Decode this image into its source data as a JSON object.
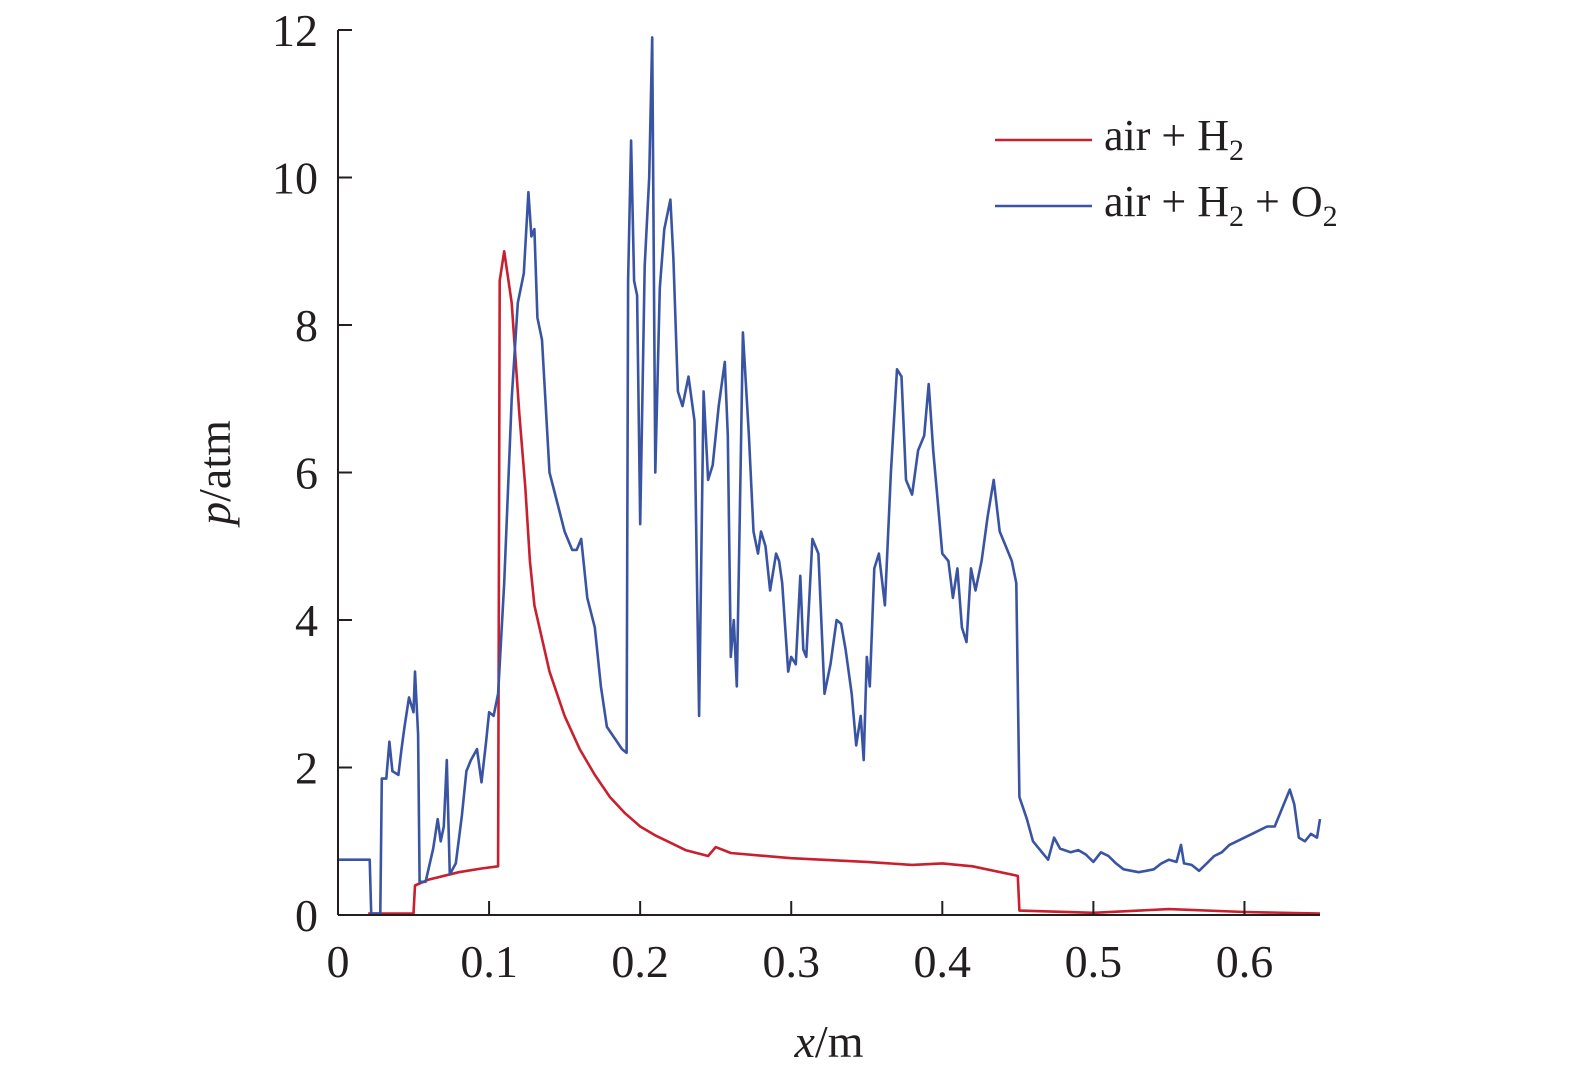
{
  "chart_data": {
    "type": "line",
    "xlabel": {
      "var": "x",
      "unit": "/m"
    },
    "ylabel": {
      "var": "p",
      "unit": "/atm"
    },
    "xlim": [
      0,
      0.65
    ],
    "ylim": [
      0,
      12
    ],
    "xticks": [
      {
        "value": 0,
        "label": "0"
      },
      {
        "value": 0.1,
        "label": "0.1"
      },
      {
        "value": 0.2,
        "label": "0.2"
      },
      {
        "value": 0.3,
        "label": "0.3"
      },
      {
        "value": 0.4,
        "label": "0.4"
      },
      {
        "value": 0.5,
        "label": "0.5"
      },
      {
        "value": 0.6,
        "label": "0.6"
      }
    ],
    "yticks": [
      {
        "value": 0,
        "label": "0"
      },
      {
        "value": 2,
        "label": "2"
      },
      {
        "value": 4,
        "label": "4"
      },
      {
        "value": 6,
        "label": "6"
      },
      {
        "value": 8,
        "label": "8"
      },
      {
        "value": 10,
        "label": "10"
      },
      {
        "value": 12,
        "label": "12"
      }
    ],
    "grid": false,
    "legend_position": "top-right",
    "series": [
      {
        "name": "air + H2",
        "legend": {
          "parts": [
            "air + H",
            "2"
          ]
        },
        "color": "#c8202f",
        "points": [
          [
            0.02,
            0.02
          ],
          [
            0.05,
            0.02
          ],
          [
            0.051,
            0.4
          ],
          [
            0.06,
            0.48
          ],
          [
            0.08,
            0.58
          ],
          [
            0.095,
            0.63
          ],
          [
            0.106,
            0.66
          ],
          [
            0.107,
            8.6
          ],
          [
            0.11,
            9.0
          ],
          [
            0.115,
            8.3
          ],
          [
            0.12,
            6.8
          ],
          [
            0.124,
            5.8
          ],
          [
            0.127,
            4.8
          ],
          [
            0.13,
            4.2
          ],
          [
            0.14,
            3.3
          ],
          [
            0.15,
            2.7
          ],
          [
            0.16,
            2.25
          ],
          [
            0.17,
            1.9
          ],
          [
            0.18,
            1.6
          ],
          [
            0.19,
            1.38
          ],
          [
            0.2,
            1.2
          ],
          [
            0.21,
            1.08
          ],
          [
            0.22,
            0.98
          ],
          [
            0.23,
            0.88
          ],
          [
            0.245,
            0.8
          ],
          [
            0.25,
            0.92
          ],
          [
            0.26,
            0.84
          ],
          [
            0.3,
            0.77
          ],
          [
            0.35,
            0.72
          ],
          [
            0.38,
            0.68
          ],
          [
            0.4,
            0.7
          ],
          [
            0.42,
            0.66
          ],
          [
            0.45,
            0.53
          ],
          [
            0.451,
            0.06
          ],
          [
            0.5,
            0.03
          ],
          [
            0.55,
            0.08
          ],
          [
            0.6,
            0.04
          ],
          [
            0.65,
            0.02
          ]
        ]
      },
      {
        "name": "air + H2 + O2",
        "legend": {
          "parts": [
            "air + H",
            "2",
            " + O",
            "2"
          ]
        },
        "color": "#3a54a4",
        "points": [
          [
            0.0,
            0.75
          ],
          [
            0.021,
            0.75
          ],
          [
            0.022,
            0.02
          ],
          [
            0.028,
            0.02
          ],
          [
            0.029,
            1.85
          ],
          [
            0.032,
            1.85
          ],
          [
            0.034,
            2.35
          ],
          [
            0.036,
            1.95
          ],
          [
            0.04,
            1.9
          ],
          [
            0.042,
            2.25
          ],
          [
            0.044,
            2.55
          ],
          [
            0.047,
            2.95
          ],
          [
            0.05,
            2.75
          ],
          [
            0.051,
            3.3
          ],
          [
            0.053,
            2.45
          ],
          [
            0.054,
            0.45
          ],
          [
            0.058,
            0.45
          ],
          [
            0.063,
            0.9
          ],
          [
            0.066,
            1.3
          ],
          [
            0.068,
            1.0
          ],
          [
            0.07,
            1.2
          ],
          [
            0.072,
            2.1
          ],
          [
            0.074,
            0.55
          ],
          [
            0.078,
            0.7
          ],
          [
            0.082,
            1.35
          ],
          [
            0.085,
            1.95
          ],
          [
            0.088,
            2.1
          ],
          [
            0.092,
            2.25
          ],
          [
            0.095,
            1.8
          ],
          [
            0.098,
            2.35
          ],
          [
            0.1,
            2.75
          ],
          [
            0.103,
            2.7
          ],
          [
            0.106,
            3.0
          ],
          [
            0.11,
            4.5
          ],
          [
            0.115,
            7.0
          ],
          [
            0.119,
            8.3
          ],
          [
            0.123,
            8.7
          ],
          [
            0.126,
            9.8
          ],
          [
            0.128,
            9.2
          ],
          [
            0.13,
            9.3
          ],
          [
            0.132,
            8.1
          ],
          [
            0.135,
            7.8
          ],
          [
            0.14,
            6.0
          ],
          [
            0.145,
            5.6
          ],
          [
            0.15,
            5.2
          ],
          [
            0.155,
            4.95
          ],
          [
            0.158,
            4.95
          ],
          [
            0.161,
            5.1
          ],
          [
            0.165,
            4.3
          ],
          [
            0.17,
            3.9
          ],
          [
            0.174,
            3.1
          ],
          [
            0.178,
            2.55
          ],
          [
            0.183,
            2.4
          ],
          [
            0.188,
            2.25
          ],
          [
            0.191,
            2.2
          ],
          [
            0.192,
            8.6
          ],
          [
            0.194,
            10.5
          ],
          [
            0.196,
            8.6
          ],
          [
            0.198,
            8.4
          ],
          [
            0.2,
            5.3
          ],
          [
            0.203,
            8.8
          ],
          [
            0.206,
            10.0
          ],
          [
            0.208,
            11.9
          ],
          [
            0.21,
            6.0
          ],
          [
            0.213,
            8.5
          ],
          [
            0.216,
            9.3
          ],
          [
            0.22,
            9.7
          ],
          [
            0.222,
            8.9
          ],
          [
            0.225,
            7.1
          ],
          [
            0.228,
            6.9
          ],
          [
            0.232,
            7.3
          ],
          [
            0.236,
            6.7
          ],
          [
            0.239,
            2.7
          ],
          [
            0.242,
            7.1
          ],
          [
            0.245,
            5.9
          ],
          [
            0.248,
            6.1
          ],
          [
            0.252,
            6.9
          ],
          [
            0.256,
            7.5
          ],
          [
            0.258,
            6.5
          ],
          [
            0.26,
            3.5
          ],
          [
            0.262,
            4.0
          ],
          [
            0.264,
            3.1
          ],
          [
            0.266,
            5.5
          ],
          [
            0.268,
            7.9
          ],
          [
            0.272,
            6.5
          ],
          [
            0.275,
            5.2
          ],
          [
            0.278,
            4.9
          ],
          [
            0.28,
            5.2
          ],
          [
            0.283,
            5.0
          ],
          [
            0.286,
            4.4
          ],
          [
            0.29,
            4.9
          ],
          [
            0.292,
            4.8
          ],
          [
            0.294,
            4.5
          ],
          [
            0.298,
            3.3
          ],
          [
            0.3,
            3.5
          ],
          [
            0.303,
            3.4
          ],
          [
            0.306,
            4.6
          ],
          [
            0.308,
            3.6
          ],
          [
            0.31,
            3.5
          ],
          [
            0.314,
            5.1
          ],
          [
            0.318,
            4.9
          ],
          [
            0.322,
            3.0
          ],
          [
            0.326,
            3.4
          ],
          [
            0.33,
            4.0
          ],
          [
            0.333,
            3.95
          ],
          [
            0.336,
            3.6
          ],
          [
            0.34,
            3.0
          ],
          [
            0.343,
            2.3
          ],
          [
            0.346,
            2.7
          ],
          [
            0.348,
            2.1
          ],
          [
            0.35,
            3.5
          ],
          [
            0.352,
            3.1
          ],
          [
            0.355,
            4.7
          ],
          [
            0.358,
            4.9
          ],
          [
            0.362,
            4.2
          ],
          [
            0.366,
            6.0
          ],
          [
            0.37,
            7.4
          ],
          [
            0.373,
            7.3
          ],
          [
            0.376,
            5.9
          ],
          [
            0.38,
            5.7
          ],
          [
            0.384,
            6.3
          ],
          [
            0.388,
            6.5
          ],
          [
            0.391,
            7.2
          ],
          [
            0.394,
            6.3
          ],
          [
            0.397,
            5.6
          ],
          [
            0.4,
            4.9
          ],
          [
            0.404,
            4.8
          ],
          [
            0.407,
            4.3
          ],
          [
            0.41,
            4.7
          ],
          [
            0.413,
            3.9
          ],
          [
            0.416,
            3.7
          ],
          [
            0.419,
            4.7
          ],
          [
            0.422,
            4.4
          ],
          [
            0.426,
            4.8
          ],
          [
            0.43,
            5.4
          ],
          [
            0.434,
            5.9
          ],
          [
            0.438,
            5.2
          ],
          [
            0.442,
            5.0
          ],
          [
            0.446,
            4.8
          ],
          [
            0.449,
            4.5
          ],
          [
            0.451,
            1.6
          ],
          [
            0.456,
            1.3
          ],
          [
            0.46,
            1.0
          ],
          [
            0.466,
            0.85
          ],
          [
            0.47,
            0.75
          ],
          [
            0.474,
            1.05
          ],
          [
            0.478,
            0.9
          ],
          [
            0.485,
            0.85
          ],
          [
            0.49,
            0.88
          ],
          [
            0.495,
            0.82
          ],
          [
            0.5,
            0.72
          ],
          [
            0.505,
            0.85
          ],
          [
            0.51,
            0.8
          ],
          [
            0.515,
            0.7
          ],
          [
            0.52,
            0.62
          ],
          [
            0.53,
            0.58
          ],
          [
            0.535,
            0.6
          ],
          [
            0.54,
            0.62
          ],
          [
            0.545,
            0.7
          ],
          [
            0.55,
            0.75
          ],
          [
            0.555,
            0.72
          ],
          [
            0.558,
            0.95
          ],
          [
            0.56,
            0.7
          ],
          [
            0.565,
            0.68
          ],
          [
            0.57,
            0.6
          ],
          [
            0.575,
            0.7
          ],
          [
            0.58,
            0.8
          ],
          [
            0.585,
            0.85
          ],
          [
            0.59,
            0.95
          ],
          [
            0.595,
            1.0
          ],
          [
            0.6,
            1.05
          ],
          [
            0.605,
            1.1
          ],
          [
            0.61,
            1.15
          ],
          [
            0.615,
            1.2
          ],
          [
            0.62,
            1.2
          ],
          [
            0.625,
            1.45
          ],
          [
            0.63,
            1.7
          ],
          [
            0.633,
            1.5
          ],
          [
            0.636,
            1.05
          ],
          [
            0.64,
            1.0
          ],
          [
            0.644,
            1.1
          ],
          [
            0.648,
            1.05
          ],
          [
            0.65,
            1.3
          ]
        ]
      }
    ]
  }
}
